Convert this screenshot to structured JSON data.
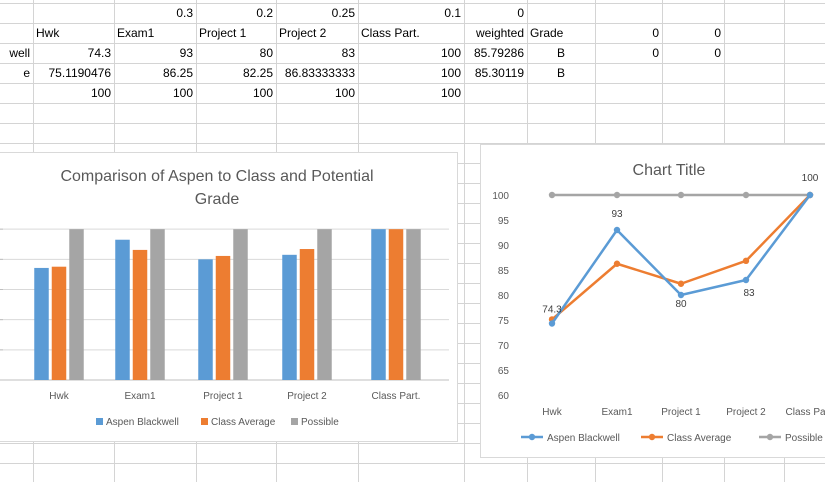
{
  "sheet": {
    "rows": [
      [
        {
          "col": 2,
          "text": "0.3",
          "align": "r"
        },
        {
          "col": 3,
          "text": "0.2",
          "align": "r"
        },
        {
          "col": 4,
          "text": "0.25",
          "align": "r"
        },
        {
          "col": 5,
          "text": "0.1",
          "align": "r"
        },
        {
          "col": 6,
          "text": "0",
          "align": "r"
        }
      ],
      [
        {
          "col": 1,
          "text": "Hwk",
          "align": "l"
        },
        {
          "col": 2,
          "text": "Exam1",
          "align": "l"
        },
        {
          "col": 3,
          "text": "Project 1",
          "align": "l"
        },
        {
          "col": 4,
          "text": "Project 2",
          "align": "l"
        },
        {
          "col": 5,
          "text": "Class Part.",
          "align": "l"
        },
        {
          "col": 6,
          "text": "weighted",
          "align": "r"
        },
        {
          "col": 7,
          "text": "Grade",
          "align": "l"
        },
        {
          "col": 8,
          "text": "0",
          "align": "r"
        },
        {
          "col": 9,
          "text": "0",
          "align": "r"
        }
      ],
      [
        {
          "col": 0,
          "text": "well",
          "align": "r"
        },
        {
          "col": 1,
          "text": "74.3",
          "align": "r"
        },
        {
          "col": 2,
          "text": "93",
          "align": "r"
        },
        {
          "col": 3,
          "text": "80",
          "align": "r"
        },
        {
          "col": 4,
          "text": "83",
          "align": "r"
        },
        {
          "col": 5,
          "text": "100",
          "align": "r"
        },
        {
          "col": 6,
          "text": "85.79286",
          "align": "r"
        },
        {
          "col": 7,
          "text": "B",
          "align": "c"
        },
        {
          "col": 8,
          "text": "0",
          "align": "r"
        },
        {
          "col": 9,
          "text": "0",
          "align": "r"
        }
      ],
      [
        {
          "col": 0,
          "text": "e",
          "align": "r"
        },
        {
          "col": 1,
          "text": "75.1190476",
          "align": "r"
        },
        {
          "col": 2,
          "text": "86.25",
          "align": "r"
        },
        {
          "col": 3,
          "text": "82.25",
          "align": "r"
        },
        {
          "col": 4,
          "text": "86.83333333",
          "align": "r"
        },
        {
          "col": 5,
          "text": "100",
          "align": "r"
        },
        {
          "col": 6,
          "text": "85.30119",
          "align": "r"
        },
        {
          "col": 7,
          "text": "B",
          "align": "c"
        }
      ],
      [
        {
          "col": 1,
          "text": "100",
          "align": "r"
        },
        {
          "col": 2,
          "text": "100",
          "align": "r"
        },
        {
          "col": 3,
          "text": "100",
          "align": "r"
        },
        {
          "col": 4,
          "text": "100",
          "align": "r"
        },
        {
          "col": 5,
          "text": "100",
          "align": "r"
        }
      ]
    ]
  },
  "colors": {
    "aspen": "#5b9bd5",
    "class_avg": "#ed7d31",
    "possible": "#a5a5a5",
    "gridline": "#d9d9d9",
    "title_text": "#595959"
  },
  "chart_data": [
    {
      "type": "bar",
      "title_line1": "Comparison of Aspen to Class and Potential",
      "title_line2": "Grade",
      "categories": [
        "Hwk",
        "Exam1",
        "Project 1",
        "Project 2",
        "Class Part."
      ],
      "series": [
        {
          "name": "Aspen Blackwell",
          "values": [
            74.3,
            93,
            80,
            83,
            100
          ]
        },
        {
          "name": "Class Average",
          "values": [
            75.12,
            86.25,
            82.25,
            86.83,
            100
          ]
        },
        {
          "name": "Possible",
          "values": [
            100,
            100,
            100,
            100,
            100
          ]
        }
      ],
      "ylim": [
        0,
        120
      ],
      "grid": true,
      "legend": "bottom"
    },
    {
      "type": "line",
      "title": "Chart Title",
      "categories": [
        "Hwk",
        "Exam1",
        "Project 1",
        "Project 2",
        "Class Part."
      ],
      "series": [
        {
          "name": "Aspen Blackwell",
          "values": [
            74.3,
            93,
            80,
            83,
            100
          ]
        },
        {
          "name": "Class Average",
          "values": [
            75.12,
            86.25,
            82.25,
            86.83,
            100
          ]
        },
        {
          "name": "Possible",
          "values": [
            100,
            100,
            100,
            100,
            100
          ]
        }
      ],
      "yticks": [
        100,
        95,
        90,
        85,
        80,
        75,
        70,
        65,
        60
      ],
      "ylim": [
        60,
        100
      ],
      "data_labels": [
        {
          "series": 0,
          "index": 0,
          "text": "74.3"
        },
        {
          "series": 0,
          "index": 1,
          "text": "93"
        },
        {
          "series": 0,
          "index": 2,
          "text": "80"
        },
        {
          "series": 0,
          "index": 3,
          "text": "83"
        },
        {
          "series": 0,
          "index": 4,
          "text": "100"
        }
      ],
      "grid": false,
      "legend": "bottom"
    }
  ]
}
